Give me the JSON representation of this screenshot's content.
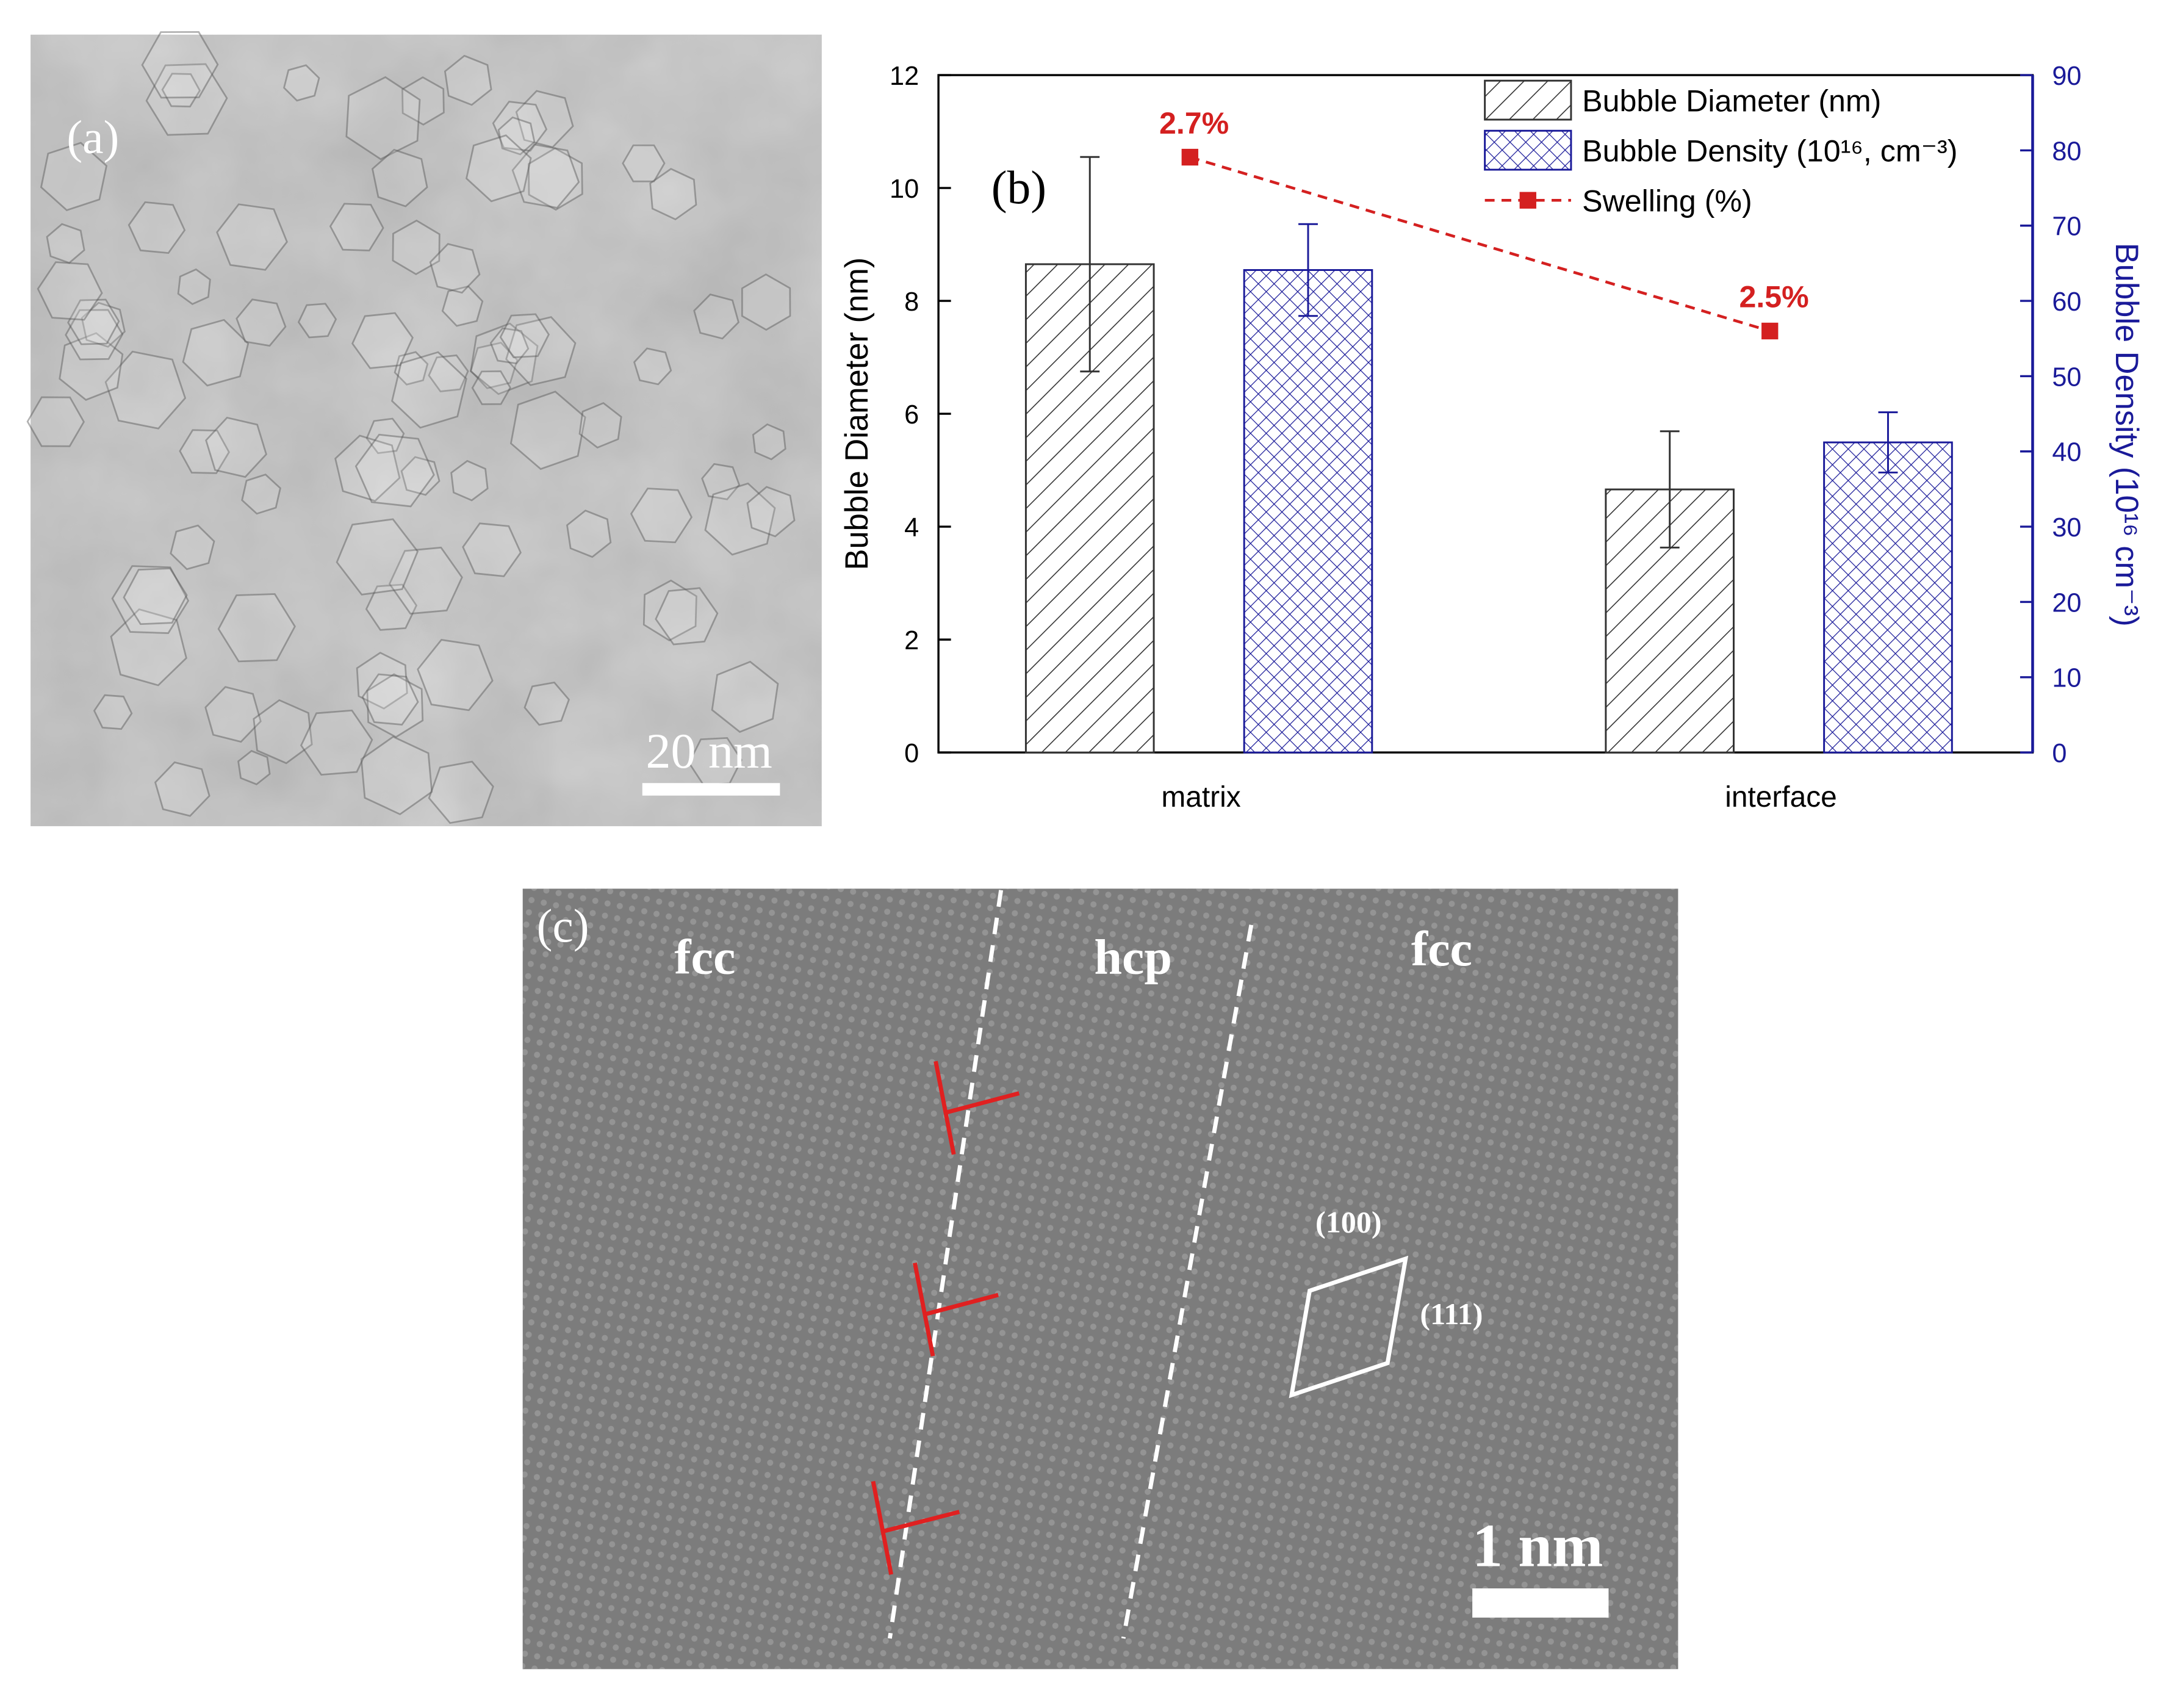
{
  "panels": {
    "a": {
      "label": "(a)",
      "scale_bar": "20 nm"
    },
    "c": {
      "label": "(c)",
      "regions": [
        "fcc",
        "hcp",
        "fcc"
      ],
      "planes": [
        "(100)",
        "(111)"
      ],
      "scale_bar": "1 nm"
    }
  },
  "chart_data": {
    "type": "bar",
    "label": "(b)",
    "categories": [
      "matrix",
      "interface"
    ],
    "y_label": "Bubble Diameter (nm)",
    "y2_label": "Bubble Density (10¹⁶ cm⁻³)",
    "ylim": [
      0,
      12
    ],
    "yticks": [
      0,
      2,
      4,
      6,
      8,
      10,
      12
    ],
    "y2lim": [
      0,
      90
    ],
    "y2ticks": [
      0,
      10,
      20,
      30,
      40,
      50,
      60,
      70,
      80,
      90
    ],
    "legend": "upper right",
    "series": [
      {
        "name": "Bubble Diameter (nm)",
        "type": "bar",
        "hatch": "/",
        "color": "#333333",
        "values": [
          8.65,
          4.66
        ],
        "errors": [
          1.9,
          1.03
        ]
      },
      {
        "name": "Bubble Density (10¹⁶, cm⁻³)",
        "type": "bar",
        "hatch": "x",
        "color": "#1a1a99",
        "axis": "y2",
        "values": [
          64.1,
          41.2
        ],
        "errors": [
          6.1,
          4.0
        ]
      },
      {
        "name": "Swelling (%)",
        "type": "line",
        "dashed": true,
        "color": "#d42020",
        "values": [
          2.7,
          2.5
        ],
        "value_labels": [
          "2.7%",
          "2.5%"
        ]
      }
    ]
  }
}
